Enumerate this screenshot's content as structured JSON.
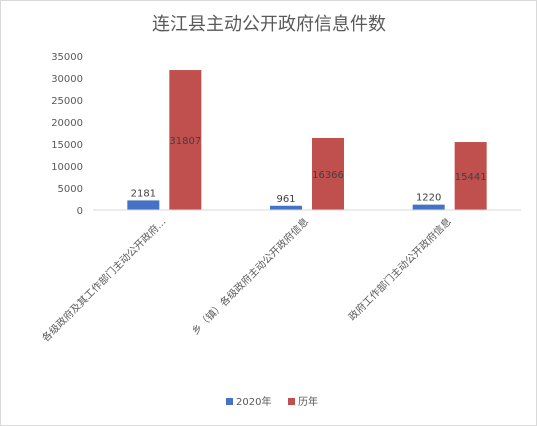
{
  "chart_data": {
    "type": "bar",
    "title": "连江县主动公开政府信息件数",
    "categories": [
      "各级政府及其工作部门主动公开政府…",
      "乡（镇）各级政府主动公开政府信息",
      "政府工作部门主动公开政府信息"
    ],
    "series": [
      {
        "name": "2020年",
        "values": [
          2181,
          961,
          1220
        ],
        "color": "#4472c4"
      },
      {
        "name": "历年",
        "values": [
          31807,
          16366,
          15441
        ],
        "color": "#c0504d"
      }
    ],
    "yticks": [
      "0",
      "5000",
      "10000",
      "15000",
      "20000",
      "25000",
      "30000",
      "35000"
    ],
    "ylim": [
      0,
      35000
    ],
    "grid": false,
    "legend_position": "bottom"
  }
}
